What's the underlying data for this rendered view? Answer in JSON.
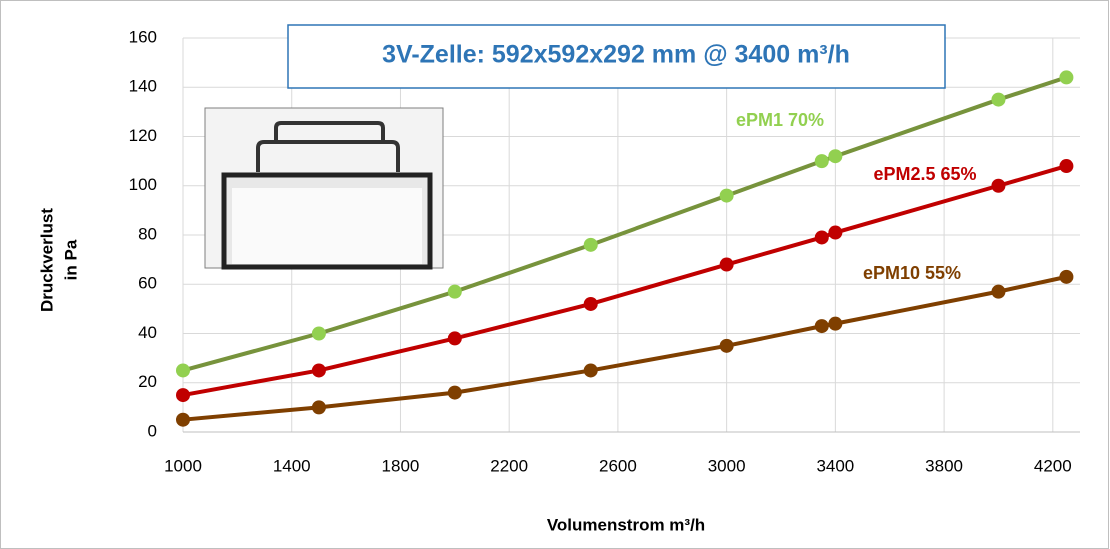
{
  "chart_data": {
    "type": "line",
    "title": "3V-Zelle: 592x592x292 mm @ 3400 m³/h",
    "x_label": "Volumenstrom m³/h",
    "y_label": [
      "Druckverlust",
      "in Pa"
    ],
    "x": [
      1000,
      1500,
      2000,
      2500,
      3000,
      3350,
      3400,
      4000,
      4250
    ],
    "series": [
      {
        "name": "ePM1 70%",
        "color": "#77933c",
        "marker_color": "#92d050",
        "values": [
          25,
          40,
          57,
          76,
          96,
          110,
          112,
          135,
          144
        ]
      },
      {
        "name": "ePM2.5 65%",
        "color": "#c00000",
        "marker_color": "#c00000",
        "values": [
          15,
          25,
          38,
          52,
          68,
          79,
          81,
          100,
          108
        ]
      },
      {
        "name": "ePM10 55%",
        "color": "#7f3f00",
        "marker_color": "#7f3f00",
        "values": [
          5,
          10,
          16,
          25,
          35,
          43,
          44,
          57,
          63
        ]
      }
    ],
    "xlim": [
      1000,
      4300
    ],
    "xticks": [
      1000,
      1400,
      1800,
      2200,
      2600,
      3000,
      3400,
      3800,
      4200
    ],
    "ylim": [
      0,
      160
    ],
    "yticks": [
      0,
      20,
      40,
      60,
      80,
      100,
      120,
      140,
      160
    ],
    "grid": true
  }
}
